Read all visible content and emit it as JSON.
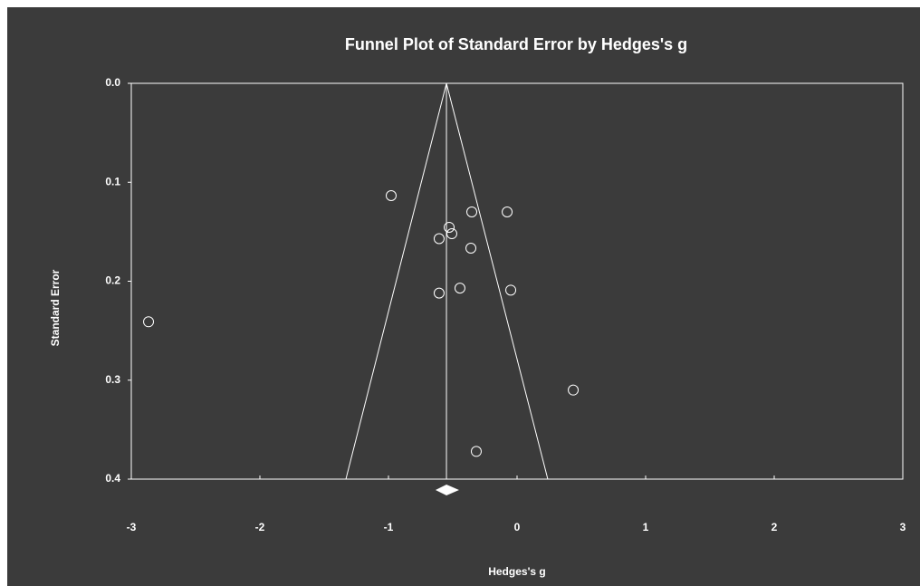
{
  "chart_data": {
    "type": "scatter",
    "title": "Funnel Plot of Standard Error by Hedges's g",
    "x_label": "Hedges's g",
    "y_label": "Standard Error",
    "x": [
      -2.866,
      -0.979,
      -0.352,
      -0.077,
      -0.528,
      -0.507,
      -0.606,
      -0.359,
      -0.606,
      -0.444,
      -0.049,
      0.437,
      -0.317
    ],
    "values": [
      0.241,
      0.1135,
      0.13,
      0.13,
      0.1455,
      0.152,
      0.157,
      0.1666,
      0.212,
      0.207,
      0.209,
      0.31,
      0.372
    ],
    "summary": {
      "estimate": -0.549,
      "ci": [
        -0.634,
        -0.451
      ]
    },
    "funnel": {
      "lower": -1.331,
      "upper": 0.239
    },
    "xlim": [
      -3,
      3
    ],
    "xticks": [
      -3,
      -2,
      -1,
      0,
      1,
      2,
      3
    ],
    "ylim": [
      0,
      0.4
    ],
    "y_inverted": true,
    "yticks": [
      {
        "value": 0,
        "label": "0.0"
      },
      0.1,
      0.2,
      0.3,
      0.4
    ],
    "color": "#ffffff",
    "background": "#3b3b3b"
  }
}
